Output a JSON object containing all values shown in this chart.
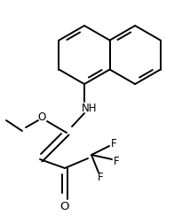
{
  "bg_color": "#ffffff",
  "line_color": "#000000",
  "text_color": "#000000",
  "lw": 1.4,
  "fs": 8.5,
  "xlim": [
    0.0,
    2.14
  ],
  "ylim": [
    0.0,
    2.52
  ]
}
